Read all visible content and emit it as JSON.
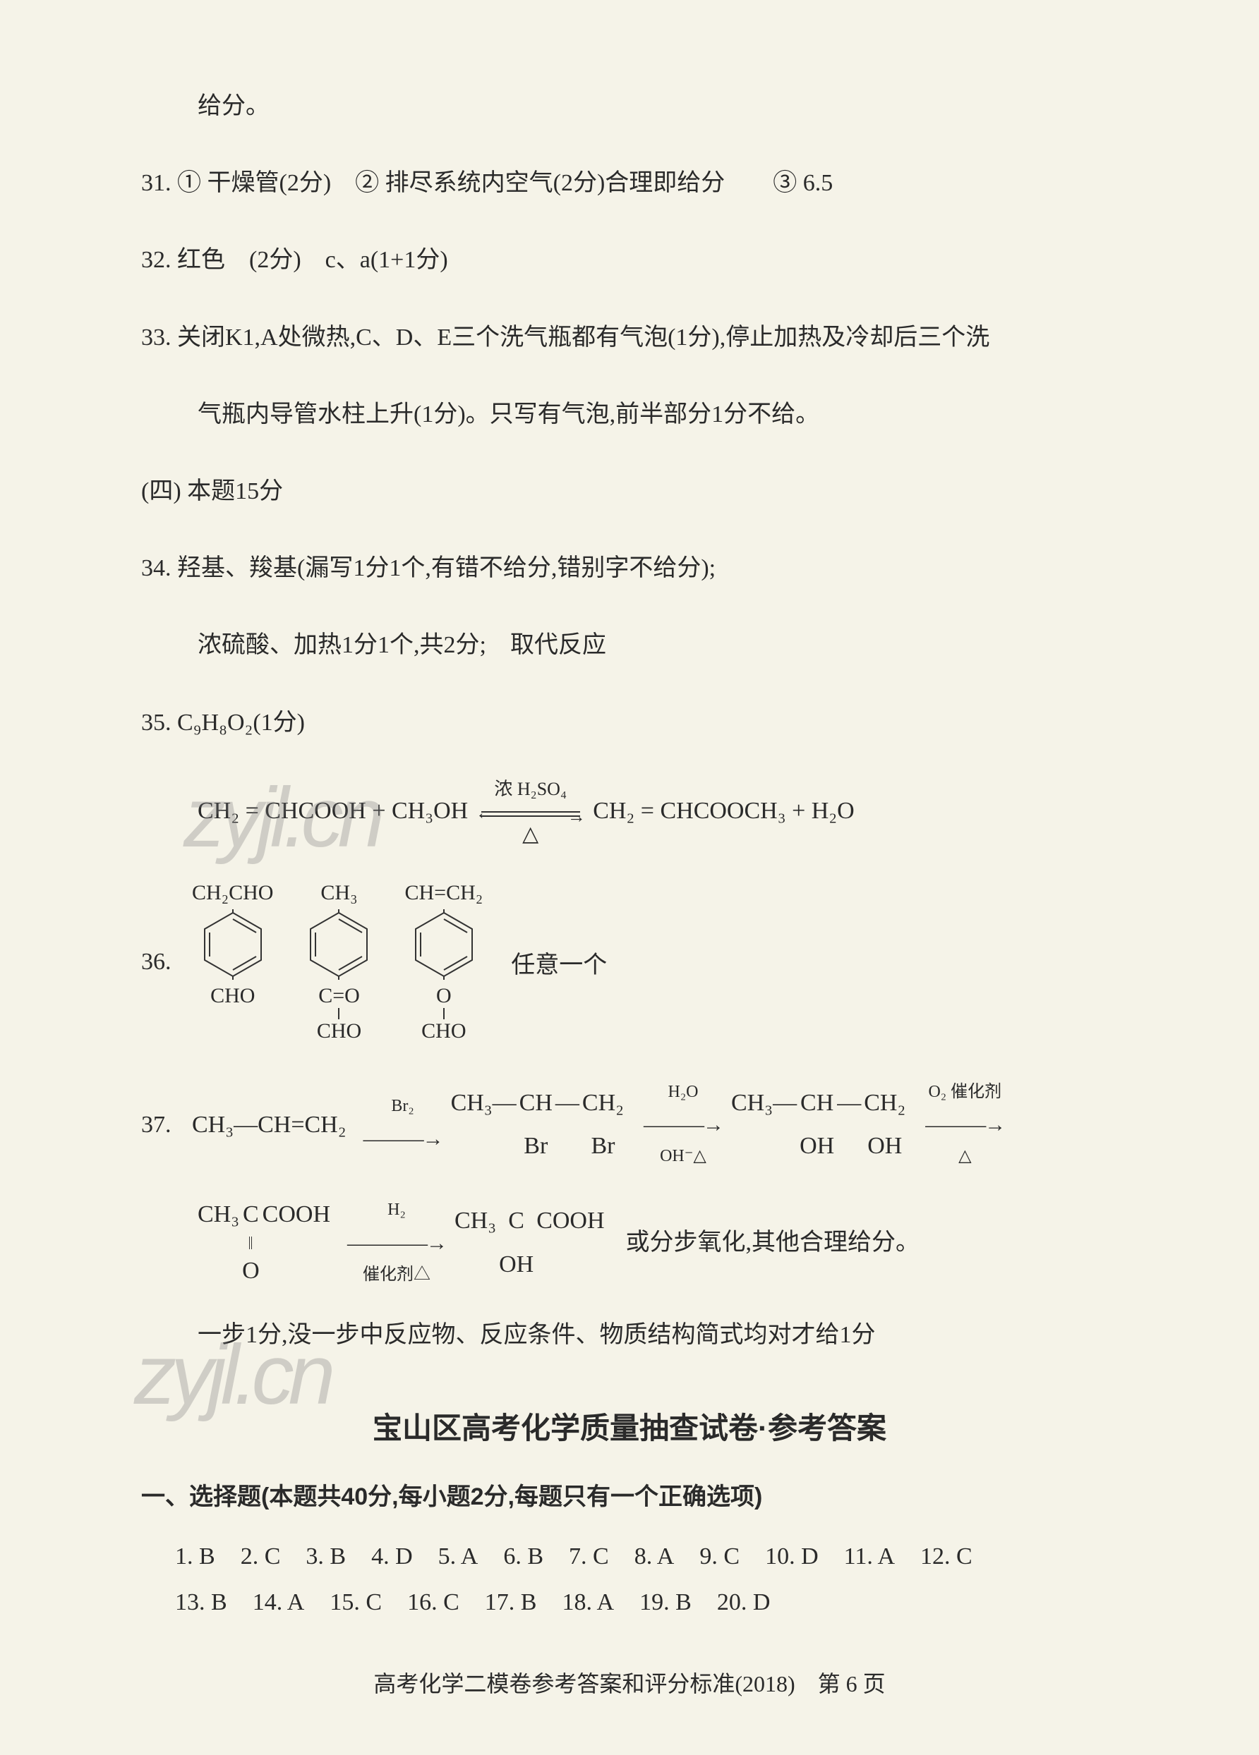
{
  "page": {
    "background_color": "#f5f3e8",
    "text_color": "#2a2a2a",
    "font_body": "SimSun",
    "font_heading": "SimHei",
    "fontsize_body": 34,
    "fontsize_heading": 42
  },
  "lines": {
    "l0": "给分。",
    "l31": "31. ① 干燥管(2分)　② 排尽系统内空气(2分)合理即给分　　③ 6.5",
    "l32": "32. 红色　(2分)　c、a(1+1分)",
    "l33a": "33. 关闭K1,A处微热,C、D、E三个洗气瓶都有气泡(1分),停止加热及冷却后三个洗",
    "l33b": "气瓶内导管水柱上升(1分)。只写有气泡,前半部分1分不给。",
    "sec4": "(四) 本题15分",
    "l34a": "34. 羟基、羧基(漏写1分1个,有错不给分,错别字不给分);",
    "l34b": "浓硫酸、加热1分1个,共2分;　取代反应",
    "l35": "35. C₉H₈O₂(1分)",
    "formula35_formula": "C₉H₈O₂",
    "eq": {
      "lhs": "CH₂ = CHCOOH + CH₃OH",
      "cond_top": "浓 H₂SO₄",
      "cond_bot": "△",
      "rhs": "CH₂ = CHCOOCH₃ + H₂O"
    },
    "l36_num": "36.",
    "l36_text": "任意一个",
    "struct1_top": "CH₂CHO",
    "struct1_bot": "CHO",
    "struct2_top": "CH₃",
    "struct2_bot1": "C=O",
    "struct2_bot2": "CHO",
    "struct3_top": "CH=CH₂",
    "struct3_bot1": "O",
    "struct3_bot2": "CHO",
    "l37_num": "37.",
    "r37_seg1": "CH₃—CH=CH₂",
    "r37_arrow1_top": "Br₂",
    "r37_seg2_main": "CH₃—CH—CH₂",
    "r37_seg2_b1": "Br",
    "r37_seg2_b2": "Br",
    "r37_arrow2_top": "H₂O",
    "r37_arrow2_bot": "OH⁻△",
    "r37_seg3_main": "CH₃—CH—CH₂",
    "r37_seg3_b1": "OH",
    "r37_seg3_b2": "OH",
    "r37_arrow3_top": "O₂ 催化剂",
    "r37_arrow3_bot": "△",
    "r37b_seg1_main": "CH₃CCOOH",
    "r37b_seg1_below": "O",
    "r37b_arrow1_top": "H₂",
    "r37b_arrow1_bot": "催化剂△",
    "r37b_seg2_main": "CH₃CCOOH",
    "r37b_seg2_below": "OH",
    "r37b_tail": "或分步氧化,其他合理给分。",
    "l37note": "一步1分,没一步中反应物、反应条件、物质结构简式均对才给1分"
  },
  "doc2": {
    "title": "宝山区高考化学质量抽查试卷·参考答案",
    "section1_heading": "一、选择题(本题共40分,每小题2分,每题只有一个正确选项)",
    "mcq": [
      {
        "n": "1",
        "a": "B"
      },
      {
        "n": "2",
        "a": "C"
      },
      {
        "n": "3",
        "a": "B"
      },
      {
        "n": "4",
        "a": "D"
      },
      {
        "n": "5",
        "a": "A"
      },
      {
        "n": "6",
        "a": "B"
      },
      {
        "n": "7",
        "a": "C"
      },
      {
        "n": "8",
        "a": "A"
      },
      {
        "n": "9",
        "a": "C"
      },
      {
        "n": "10",
        "a": "D"
      },
      {
        "n": "11",
        "a": "A"
      },
      {
        "n": "12",
        "a": "C"
      },
      {
        "n": "13",
        "a": "B"
      },
      {
        "n": "14",
        "a": "A"
      },
      {
        "n": "15",
        "a": "C"
      },
      {
        "n": "16",
        "a": "C"
      },
      {
        "n": "17",
        "a": "B"
      },
      {
        "n": "18",
        "a": "A"
      },
      {
        "n": "19",
        "a": "B"
      },
      {
        "n": "20",
        "a": "D"
      }
    ]
  },
  "footer": "高考化学二模卷参考答案和评分标准(2018)　第 6 页",
  "watermark": "zyjl.cn",
  "benzene_svg": {
    "stroke": "#333333",
    "stroke_width": 2,
    "width": 90,
    "height": 100
  }
}
